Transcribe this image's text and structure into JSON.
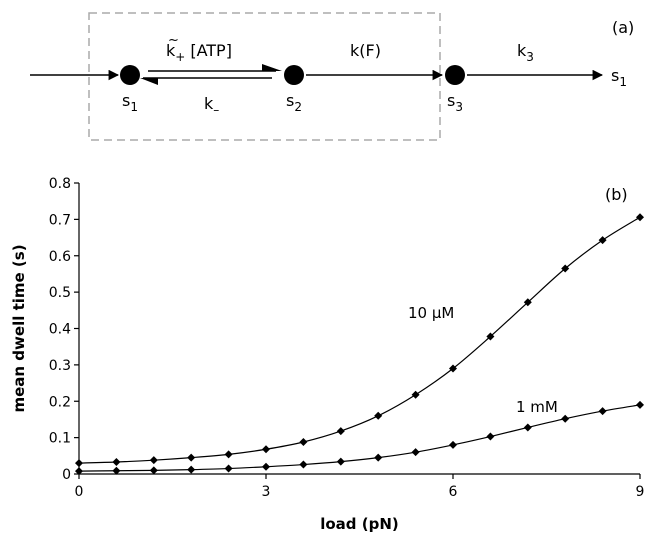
{
  "scheme": {
    "panel_label": "(a)",
    "states": {
      "s1": "s",
      "s2": "s",
      "s3": "s",
      "s1_out": "s"
    },
    "state_subs": {
      "s1": "1",
      "s2": "2",
      "s3": "3",
      "s1_out": "1"
    },
    "rates": {
      "kplus_base": "k",
      "kplus_tilde": "~",
      "kplus_sub": "+",
      "kplus_atp": "[ATP]",
      "kminus_base": "k",
      "kminus_sub": "–",
      "kF": "k(F)",
      "k3_base": "k",
      "k3_sub": "3"
    }
  },
  "chart_data": {
    "type": "line",
    "panel_label": "(b)",
    "xlabel": "load (pN)",
    "ylabel": "mean dwell time (s)",
    "xlim": [
      0,
      9
    ],
    "ylim": [
      0,
      0.8
    ],
    "xticks": [
      0,
      3,
      6,
      9
    ],
    "yticks": [
      0,
      0.1,
      0.2,
      0.3,
      0.4,
      0.5,
      0.6,
      0.7,
      0.8
    ],
    "ytick_labels": [
      "0",
      "0.1",
      "0.2",
      "0.3",
      "0.4",
      "0.5",
      "0.6",
      "0.7",
      "0.8"
    ],
    "grid": false,
    "x": [
      0,
      0.6,
      1.2,
      1.8,
      2.4,
      3.0,
      3.6,
      4.2,
      4.8,
      5.4,
      6.0,
      6.6,
      7.2,
      7.8,
      8.4,
      9.0
    ],
    "series": [
      {
        "name": "10 µM",
        "values": [
          0.03,
          0.033,
          0.038,
          0.045,
          0.054,
          0.068,
          0.088,
          0.118,
          0.16,
          0.218,
          0.29,
          0.378,
          0.472,
          0.565,
          0.643,
          0.706
        ]
      },
      {
        "name": "1 mM",
        "values": [
          0.008,
          0.009,
          0.01,
          0.012,
          0.015,
          0.02,
          0.026,
          0.034,
          0.045,
          0.06,
          0.08,
          0.103,
          0.128,
          0.152,
          0.173,
          0.19
        ]
      }
    ]
  }
}
